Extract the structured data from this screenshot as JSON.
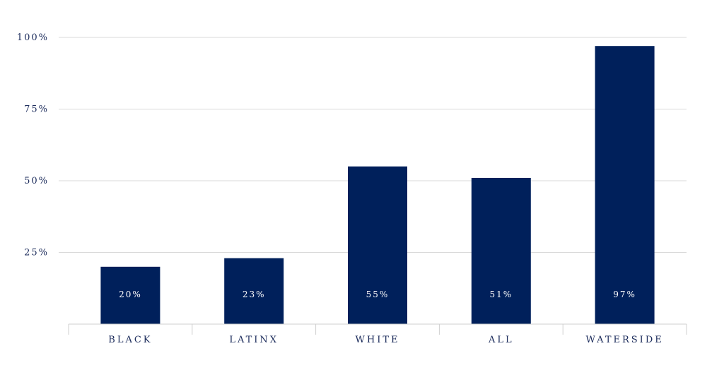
{
  "chart_data": {
    "type": "bar",
    "categories": [
      "BLACK",
      "LATINX",
      "WHITE",
      "ALL",
      "WATERSIDE"
    ],
    "values": [
      20,
      23,
      55,
      51,
      97
    ],
    "data_labels": [
      "20%",
      "23%",
      "55%",
      "51%",
      "97%"
    ],
    "y_ticks": [
      {
        "value": 25,
        "label": "25%"
      },
      {
        "value": 50,
        "label": "50%"
      },
      {
        "value": 75,
        "label": "75%"
      },
      {
        "value": 100,
        "label": "100%"
      }
    ],
    "ylim": [
      0,
      100
    ],
    "grid": true,
    "bar_color": "#00205b",
    "title": "",
    "xlabel": "",
    "ylabel": ""
  }
}
